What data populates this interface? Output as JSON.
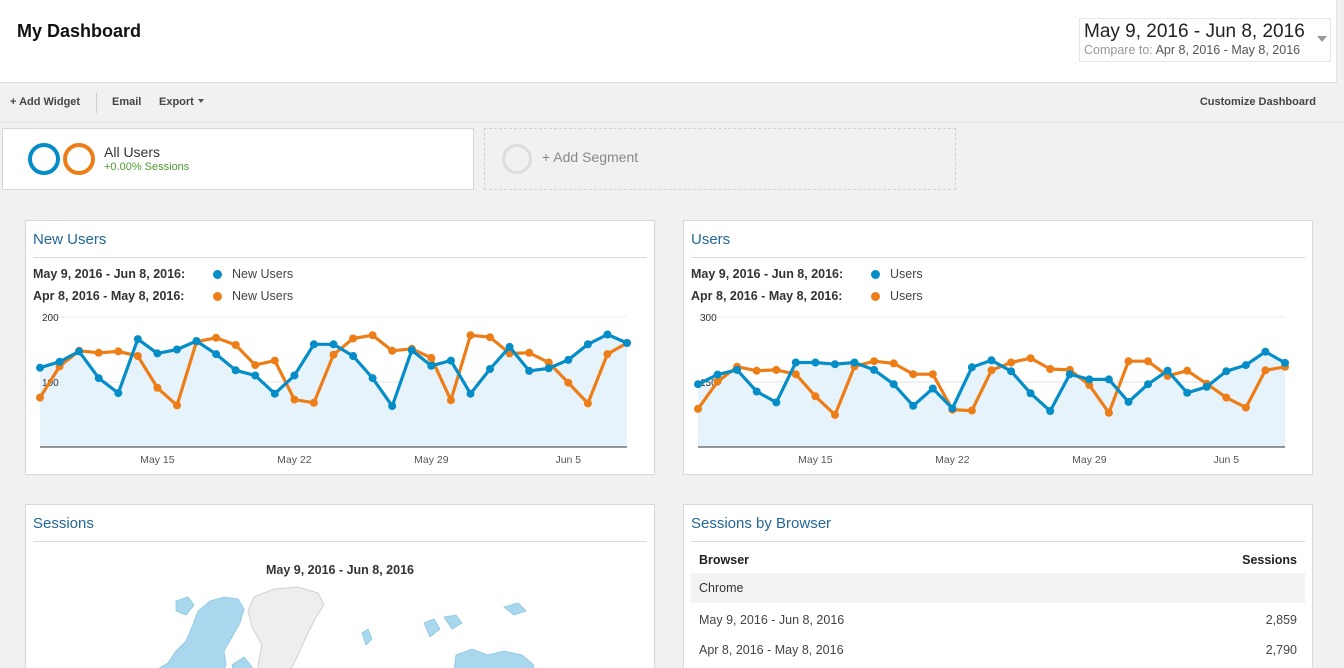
{
  "header": {
    "title": "My Dashboard",
    "date_range": "May 9, 2016 - Jun 8, 2016",
    "compare_label": "Compare to:",
    "compare_range": "Apr 8, 2016 - May 8, 2016"
  },
  "toolbar": {
    "add_widget": "+ Add Widget",
    "email": "Email",
    "export": "Export",
    "customize": "Customize Dashboard"
  },
  "segments": {
    "active": {
      "name": "All Users",
      "detail": "+0.00% Sessions"
    },
    "add_label": "+ Add Segment"
  },
  "colors": {
    "current": "#058dc7",
    "previous": "#ed7e17",
    "area_fill": "#e6f3fa",
    "title": "#226797"
  },
  "widgets": {
    "new_users": {
      "title": "New Users",
      "legend": [
        {
          "range": "May 9, 2016 - Jun 8, 2016:",
          "series": "New Users"
        },
        {
          "range": "Apr 8, 2016 - May 8, 2016:",
          "series": "New Users"
        }
      ]
    },
    "users": {
      "title": "Users",
      "legend": [
        {
          "range": "May 9, 2016 - Jun 8, 2016:",
          "series": "Users"
        },
        {
          "range": "Apr 8, 2016 - May 8, 2016:",
          "series": "Users"
        }
      ]
    },
    "sessions": {
      "title": "Sessions",
      "map_range": "May 9, 2016 - Jun 8, 2016"
    },
    "sessions_by_browser": {
      "title": "Sessions by Browser",
      "col_browser": "Browser",
      "col_sessions": "Sessions",
      "group": "Chrome",
      "rows": [
        {
          "range": "May 9, 2016 - Jun 8, 2016",
          "value": "2,859"
        },
        {
          "range": "Apr 8, 2016 - May 8, 2016",
          "value": "2,790"
        }
      ]
    }
  },
  "chart_data": [
    {
      "type": "line",
      "chart": "new_users",
      "ylim": [
        0,
        200
      ],
      "yticks": [
        "200",
        "100"
      ],
      "ytick_values": [
        200,
        100
      ],
      "xticks": [
        "May 15",
        "May 22",
        "May 29",
        "Jun 5"
      ],
      "xtick_index": [
        6,
        13,
        20,
        27
      ],
      "series": [
        {
          "name": "New Users",
          "period": "May 9, 2016 - Jun 8, 2016",
          "values": [
            122,
            131,
            147,
            106,
            83,
            166,
            144,
            150,
            163,
            143,
            118,
            110,
            82,
            110,
            158,
            158,
            140,
            106,
            63,
            149,
            125,
            133,
            82,
            120,
            154,
            117,
            121,
            134,
            158,
            173,
            160
          ]
        },
        {
          "name": "New Users",
          "period": "Apr 8, 2016 - May 8, 2016",
          "values": [
            76,
            124,
            148,
            145,
            147,
            140,
            91,
            64,
            162,
            168,
            157,
            126,
            133,
            73,
            68,
            142,
            167,
            172,
            148,
            151,
            137,
            72,
            172,
            169,
            144,
            145,
            130,
            99,
            67,
            143,
            160
          ]
        }
      ]
    },
    {
      "type": "line",
      "chart": "users",
      "ylim": [
        0,
        300
      ],
      "yticks": [
        "300",
        "150"
      ],
      "ytick_values": [
        300,
        150
      ],
      "xticks": [
        "May 15",
        "May 22",
        "May 29",
        "Jun 5"
      ],
      "xtick_index": [
        6,
        13,
        20,
        27
      ],
      "series": [
        {
          "name": "Users",
          "period": "May 9, 2016 - Jun 8, 2016",
          "values": [
            145,
            167,
            178,
            128,
            103,
            195,
            195,
            191,
            195,
            178,
            145,
            95,
            135,
            89,
            184,
            200,
            175,
            124,
            83,
            168,
            156,
            156,
            104,
            145,
            176,
            125,
            139,
            175,
            189,
            220,
            194
          ]
        },
        {
          "name": "Users",
          "period": "Apr 8, 2016 - May 8, 2016",
          "values": [
            88,
            151,
            185,
            176,
            178,
            168,
            117,
            74,
            186,
            198,
            193,
            168,
            168,
            86,
            84,
            177,
            195,
            205,
            180,
            178,
            143,
            79,
            198,
            198,
            164,
            176,
            146,
            114,
            91,
            177,
            185
          ]
        }
      ]
    }
  ]
}
